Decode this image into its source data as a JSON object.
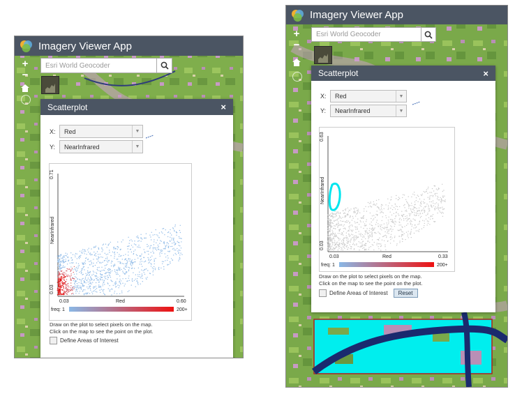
{
  "app1": {
    "title": "Imagery Viewer App",
    "geocoder_placeholder": "Esri World Geocoder",
    "zoom_in": "+",
    "zoom_out": "−",
    "panel": {
      "title": "Scatterplot",
      "close": "×",
      "x_label": "X:",
      "x_value": "Red",
      "y_label": "Y:",
      "y_value": "NearInfrared",
      "hint_line1": "Draw on the plot to select pixels on the map.",
      "hint_line2": "Click on the map to see the point on the plot.",
      "aoi_label": "Define Areas of Interest"
    },
    "chart_data": {
      "type": "scatter",
      "xlabel": "Red",
      "ylabel": "NearInfrared",
      "xlim": [
        0.03,
        0.6
      ],
      "ylim": [
        0.03,
        0.71
      ],
      "x_ticks": [
        "0.03",
        "0.60"
      ],
      "y_ticks": [
        "0.03",
        "0.71"
      ],
      "legend_label": "freq: 1",
      "legend_max": "200+",
      "dense_color": "#ff0000",
      "sparse_color": "#8ab8e6"
    }
  },
  "app2": {
    "title": "Imagery Viewer App",
    "geocoder_placeholder": "Esri World Geocoder",
    "zoom_in": "+",
    "zoom_out": "−",
    "panel": {
      "title": "Scatterplot",
      "close": "×",
      "x_label": "X:",
      "x_value": "Red",
      "y_label": "Y:",
      "y_value": "NearInfrared",
      "hint_line1": "Draw on the plot to select pixels on the map.",
      "hint_line2": "Click on the map to see the point on the plot.",
      "aoi_label": "Define Areas of Interest",
      "reset_label": "Reset"
    },
    "chart_data": {
      "type": "scatter",
      "xlabel": "Red",
      "ylabel": "NearInfrared",
      "xlim": [
        0.03,
        0.33
      ],
      "ylim": [
        0.03,
        0.63
      ],
      "x_ticks": [
        "0.03",
        "0.33"
      ],
      "y_ticks": [
        "0.03",
        "0.63"
      ],
      "legend_label": "freq: 1",
      "legend_max": "200+",
      "point_color": "#c8c8c8",
      "selection_color": "#00e5ee"
    }
  },
  "colors": {
    "header": "#4b5563",
    "map_green": "#7aa548",
    "map_pink": "#c98fc9",
    "river": "#1a2a6e",
    "highlight": "#00f0f0"
  }
}
